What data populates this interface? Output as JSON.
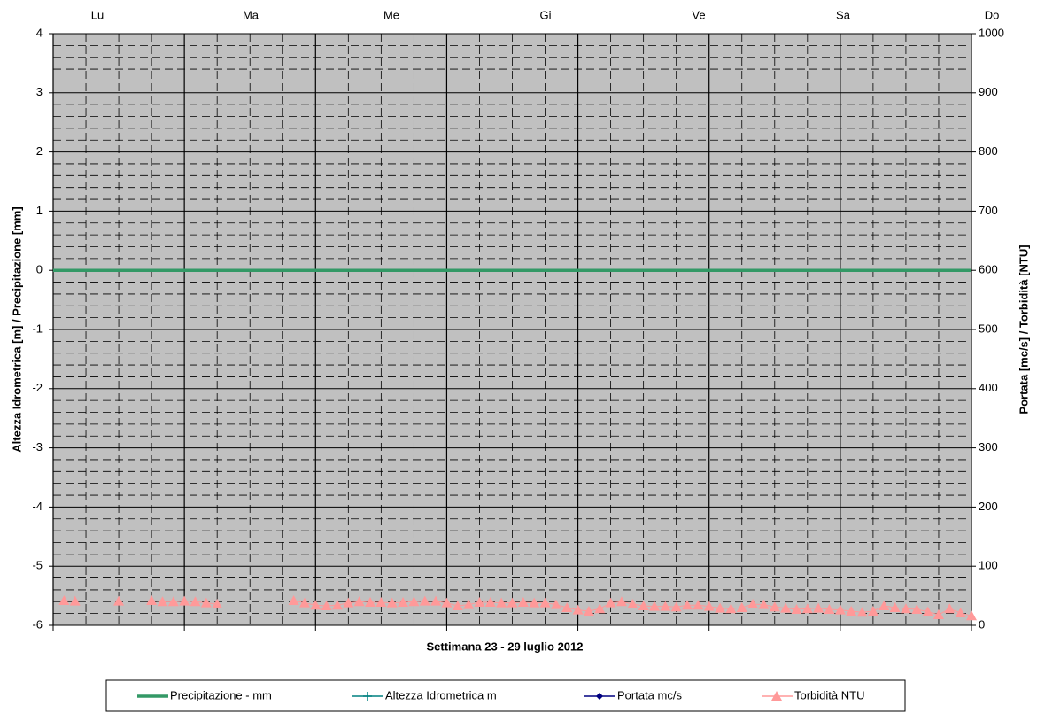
{
  "chart_data": {
    "type": "line",
    "xlabel": "Settimana  23 - 29  luglio 2012",
    "ylabel": "Altezza Idrometrica [m] / Precipitazione [mm]",
    "y2label": "Portata [mc/s] / Torbidità [NTU]",
    "days": [
      "Lu",
      "Ma",
      "Me",
      "Gi",
      "Ve",
      "Sa",
      "Do"
    ],
    "x": [
      0,
      2,
      4,
      6,
      8,
      10,
      12,
      14,
      16,
      18,
      20,
      22,
      24,
      26,
      28,
      30,
      32,
      34,
      36,
      38,
      40,
      42,
      44,
      46,
      48,
      50,
      52,
      54,
      56,
      58,
      60,
      62,
      64,
      66,
      68,
      70,
      72,
      74,
      76,
      78,
      80,
      82,
      84,
      86,
      88,
      90,
      92,
      94,
      96,
      98,
      100,
      102,
      104,
      106,
      108,
      110,
      112,
      114,
      116,
      118,
      120,
      122,
      124,
      126,
      128,
      130,
      132,
      134,
      136,
      138,
      140,
      142,
      144,
      146,
      148,
      150,
      152,
      154,
      156,
      158,
      160,
      162,
      164,
      166,
      168
    ],
    "xlim": [
      0,
      168
    ],
    "xticks": [
      0,
      24,
      48,
      72,
      96,
      120,
      144,
      168
    ],
    "ylim": [
      -6,
      4
    ],
    "yticks": [
      -6,
      -5,
      -4,
      -3,
      -2,
      -1,
      0,
      1,
      2,
      3,
      4
    ],
    "y2lim": [
      0,
      1000
    ],
    "y2ticks": [
      0,
      100,
      200,
      300,
      400,
      500,
      600,
      700,
      800,
      900,
      1000
    ],
    "grid": true,
    "background": "#c0c0c0",
    "series": [
      {
        "name": "Precipitazione - mm",
        "color": "#339966",
        "marker": "none",
        "values": [
          0,
          0,
          0,
          0,
          0,
          0,
          0,
          0,
          0,
          0,
          0,
          0,
          0,
          0,
          0,
          0,
          0,
          0,
          0,
          0,
          0,
          0,
          0,
          0,
          0,
          0,
          0,
          0,
          0,
          0,
          0,
          0,
          0,
          0,
          0,
          0,
          0,
          0,
          0,
          0,
          0,
          0,
          0,
          0,
          0,
          0,
          0,
          0,
          0,
          0,
          0,
          0,
          0,
          0,
          0,
          0,
          0,
          0,
          0,
          0,
          0,
          0,
          0,
          0,
          0,
          0,
          0,
          0,
          0,
          0,
          0,
          0,
          0,
          0,
          0,
          0,
          0,
          0,
          0,
          0,
          0,
          0,
          0,
          0,
          0
        ]
      },
      {
        "name": "Altezza Idrometrica m",
        "color": "#008080",
        "marker": "plus",
        "values": [
          null,
          null,
          null,
          null,
          null,
          null,
          null,
          null,
          null,
          null,
          null,
          null,
          null,
          null,
          null,
          null,
          null,
          null,
          null,
          null,
          null,
          null,
          null,
          null,
          null,
          null,
          null,
          null,
          null,
          null,
          null,
          null,
          null,
          null,
          null,
          null,
          null,
          null,
          null,
          null,
          null,
          null,
          null,
          null,
          null,
          null,
          null,
          null,
          null,
          null,
          null,
          null,
          null,
          null,
          null,
          null,
          null,
          null,
          null,
          null,
          null,
          null,
          null,
          null,
          null,
          null,
          null,
          null,
          null,
          null,
          null,
          null,
          null,
          null,
          null,
          null,
          null,
          null,
          null,
          null,
          null,
          null,
          null,
          null,
          null
        ]
      },
      {
        "name": "Portata mc/s",
        "color": "#000080",
        "marker": "diamond",
        "axis": "y2",
        "values": [
          null,
          null,
          null,
          null,
          null,
          null,
          null,
          null,
          null,
          null,
          null,
          null,
          null,
          null,
          null,
          null,
          null,
          null,
          null,
          null,
          null,
          null,
          null,
          null,
          null,
          null,
          null,
          null,
          null,
          null,
          null,
          null,
          null,
          null,
          null,
          null,
          null,
          null,
          null,
          null,
          null,
          null,
          null,
          null,
          null,
          null,
          null,
          null,
          null,
          null,
          null,
          null,
          null,
          null,
          null,
          null,
          null,
          null,
          null,
          null,
          null,
          null,
          null,
          null,
          null,
          null,
          null,
          null,
          null,
          null,
          null,
          null,
          null,
          null,
          null,
          null,
          null,
          null,
          null,
          null,
          null,
          null,
          null,
          null,
          null
        ]
      },
      {
        "name": "Torbidità NTU",
        "color": "#ff9999",
        "marker": "triangle",
        "axis": "y2",
        "values": [
          null,
          42,
          41,
          null,
          null,
          null,
          41,
          null,
          null,
          42,
          40,
          40,
          41,
          40,
          38,
          36,
          null,
          null,
          null,
          null,
          null,
          null,
          42,
          38,
          34,
          33,
          34,
          38,
          40,
          39,
          39,
          38,
          39,
          40,
          41,
          41,
          38,
          33,
          35,
          39,
          39,
          38,
          38,
          39,
          38,
          38,
          35,
          30,
          26,
          24,
          28,
          38,
          40,
          36,
          33,
          32,
          32,
          31,
          34,
          34,
          32,
          29,
          28,
          30,
          36,
          35,
          31,
          29,
          27,
          28,
          29,
          27,
          26,
          24,
          22,
          24,
          33,
          30,
          28,
          27,
          23,
          18,
          28,
          21,
          16
        ]
      }
    ]
  }
}
